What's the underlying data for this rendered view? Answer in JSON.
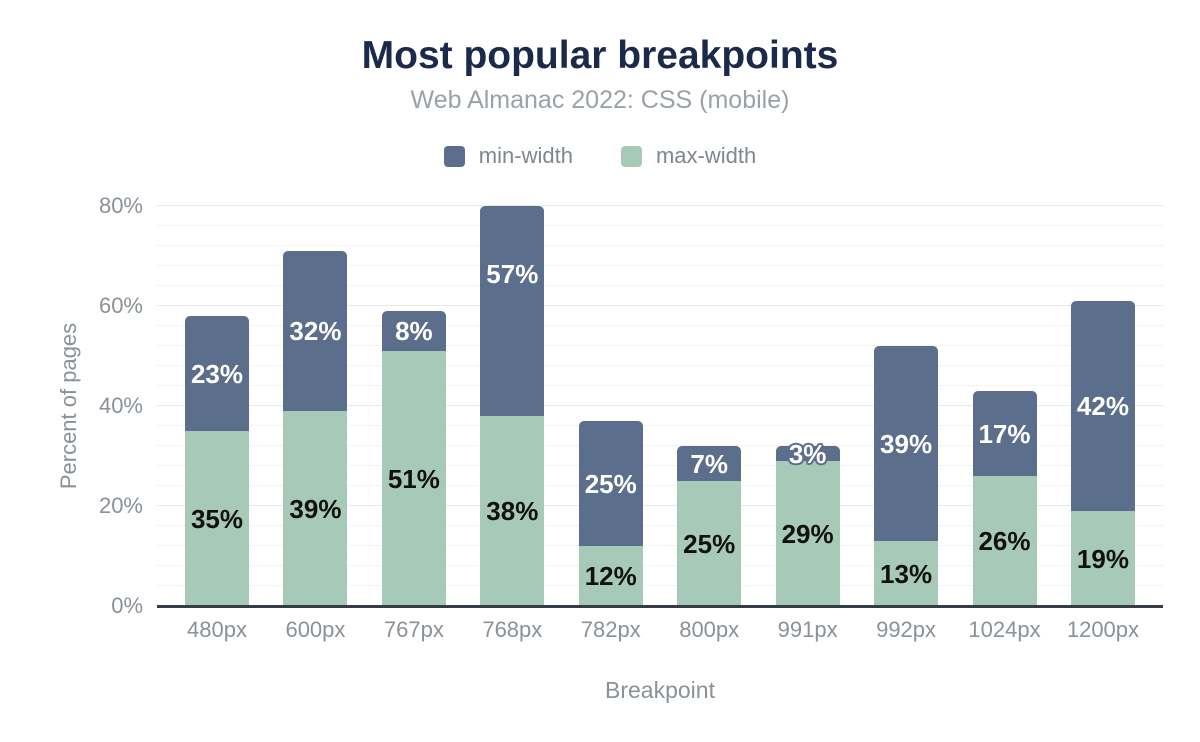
{
  "header": {
    "title": "Most popular breakpoints",
    "subtitle": "Web Almanac 2022: CSS (mobile)"
  },
  "legend": [
    {
      "label": "min-width",
      "color": "#5B6E8C"
    },
    {
      "label": "max-width",
      "color": "#A7CAB8"
    }
  ],
  "chart_data": {
    "type": "bar",
    "stacked": true,
    "title": "Most popular breakpoints",
    "subtitle": "Web Almanac 2022: CSS (mobile)",
    "categories": [
      "480px",
      "600px",
      "767px",
      "768px",
      "782px",
      "800px",
      "991px",
      "992px",
      "1024px",
      "1200px"
    ],
    "series": [
      {
        "name": "max-width",
        "color": "#A7CAB8",
        "label_color": "#111111",
        "values": [
          35,
          39,
          51,
          38,
          12,
          25,
          29,
          13,
          26,
          19
        ]
      },
      {
        "name": "min-width",
        "color": "#5B6E8C",
        "label_color": "#ffffff",
        "values": [
          23,
          32,
          8,
          57,
          25,
          7,
          3,
          39,
          17,
          42
        ]
      }
    ],
    "xlabel": "Breakpoint",
    "ylabel": "Percent of pages",
    "ylim": [
      0,
      80
    ],
    "clip_to_ylim": true,
    "yticks": [
      {
        "label": "0%",
        "value": 0
      },
      {
        "label": "20%",
        "value": 20
      },
      {
        "label": "40%",
        "value": 40
      },
      {
        "label": "60%",
        "value": 60
      },
      {
        "label": "80%",
        "value": 80
      }
    ],
    "grid": {
      "major_values": [
        20,
        40,
        60,
        80
      ],
      "minor_step": 4,
      "minor_style": "dotted",
      "grid_on": true
    },
    "legend_position": "top"
  }
}
